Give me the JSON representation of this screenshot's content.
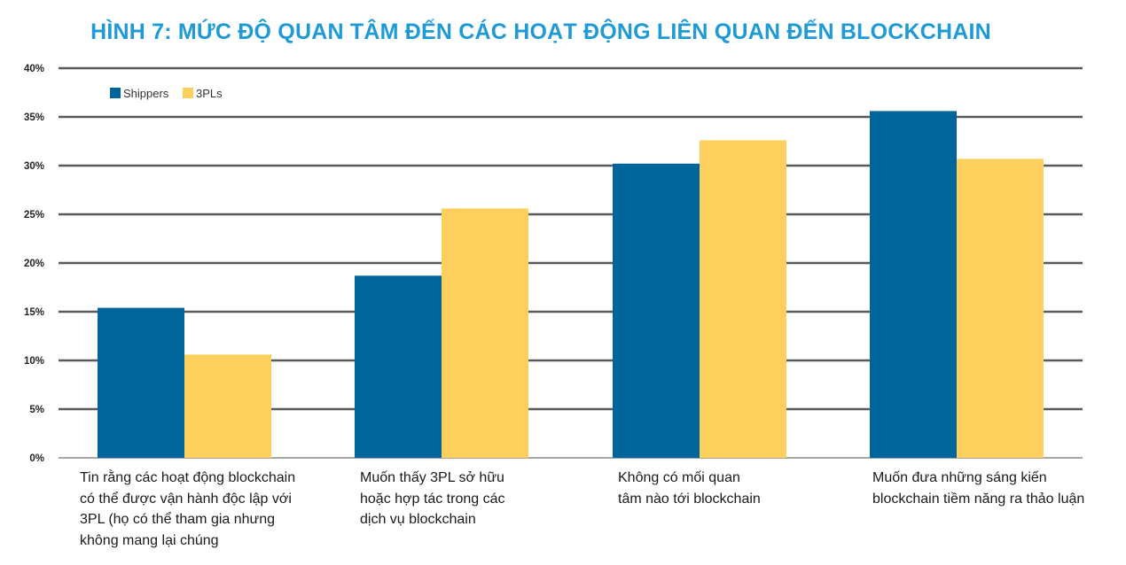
{
  "chart_data": {
    "type": "bar",
    "title": "HÌNH 7: MỨC ĐỘ QUAN TÂM ĐẾN CÁC HOẠT ĐỘNG LIÊN QUAN ĐẾN BLOCKCHAIN",
    "xlabel": "",
    "ylabel": "",
    "ylim": [
      0,
      40
    ],
    "yticks": [
      "0%",
      "5%",
      "10%",
      "15%",
      "20%",
      "25%",
      "30%",
      "35%",
      "40%"
    ],
    "grid": true,
    "legend_position": "top-left",
    "categories": [
      "Tin rằng các hoạt động blockchain có thể được vận hành độc lập với 3PL (họ có thể tham gia nhưng không mang lại chúng",
      "Muốn thấy 3PL sở hữu hoặc hợp tác trong các dịch vụ blockchain",
      "Không có mối quan tâm nào tới blockchain",
      "Muốn đưa những sáng kiến blockchain tiềm năng ra thảo luận"
    ],
    "category_lines": [
      [
        "Tin rằng các hoạt động blockchain",
        "có thể được vận hành độc lập với",
        "3PL (họ có thể tham gia nhưng",
        "không mang lại chúng"
      ],
      [
        "Muốn thấy 3PL sở hữu",
        "hoặc hợp tác trong các",
        "dịch vụ blockchain"
      ],
      [
        "Không có mối quan",
        "tâm nào tới blockchain"
      ],
      [
        "Muốn đưa những sáng kiến",
        "blockchain tiềm năng ra thảo luận"
      ]
    ],
    "series": [
      {
        "name": "Shippers",
        "color": "#00659a",
        "values": [
          15.4,
          18.7,
          30.2,
          35.6
        ]
      },
      {
        "name": "3PLs",
        "color": "#fdd05e",
        "values": [
          10.6,
          25.6,
          32.6,
          30.7
        ]
      }
    ]
  }
}
